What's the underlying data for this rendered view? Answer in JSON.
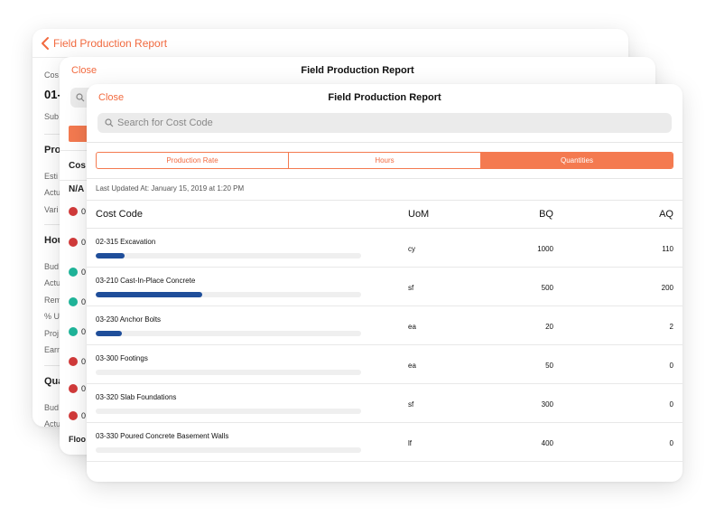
{
  "back_card": {
    "back_label": "Field Production Report",
    "fragments": [
      "Cos",
      "01-",
      "Sub",
      "Pro",
      "Esti",
      "Actu",
      "Vari",
      "Hou",
      "Bud",
      "Actu",
      "Rem",
      "% U",
      "Proj",
      "Earn",
      "Qua",
      "Bud",
      "Actu"
    ]
  },
  "middle_card": {
    "close_label": "Close",
    "title": "Field Production Report",
    "fragments": [
      "Cos",
      "N/A",
      "0",
      "0",
      "0",
      "0",
      "0",
      "0",
      "0",
      "0",
      "Floo"
    ]
  },
  "front_card": {
    "close_label": "Close",
    "title": "Field Production Report",
    "search_placeholder": "Search for Cost Code",
    "tabs": [
      {
        "label": "Production Rate",
        "active": false
      },
      {
        "label": "Hours",
        "active": false
      },
      {
        "label": "Quantities",
        "active": true
      }
    ],
    "last_updated": "Last Updated At: January 15, 2019 at 1:20 PM",
    "columns": {
      "cost_code": "Cost Code",
      "uom": "UoM",
      "bq": "BQ",
      "aq": "AQ"
    },
    "rows": [
      {
        "name": "02-315 Excavation",
        "uom": "cy",
        "bq": "1000",
        "aq": "110",
        "progress": 0.11
      },
      {
        "name": "03-210 Cast-In-Place Concrete",
        "uom": "sf",
        "bq": "500",
        "aq": "200",
        "progress": 0.4
      },
      {
        "name": "03-230 Anchor Bolts",
        "uom": "ea",
        "bq": "20",
        "aq": "2",
        "progress": 0.1
      },
      {
        "name": "03-300 Footings",
        "uom": "ea",
        "bq": "50",
        "aq": "0",
        "progress": 0
      },
      {
        "name": "03-320 Slab Foundations",
        "uom": "sf",
        "bq": "300",
        "aq": "0",
        "progress": 0
      },
      {
        "name": "03-330 Poured Concrete Basement Walls",
        "uom": "lf",
        "bq": "400",
        "aq": "0",
        "progress": 0
      }
    ]
  },
  "colors": {
    "accent": "#f26a3f",
    "progress": "#1f4e9a",
    "dot_red": "#d23a3a",
    "dot_green": "#1fb59a"
  }
}
